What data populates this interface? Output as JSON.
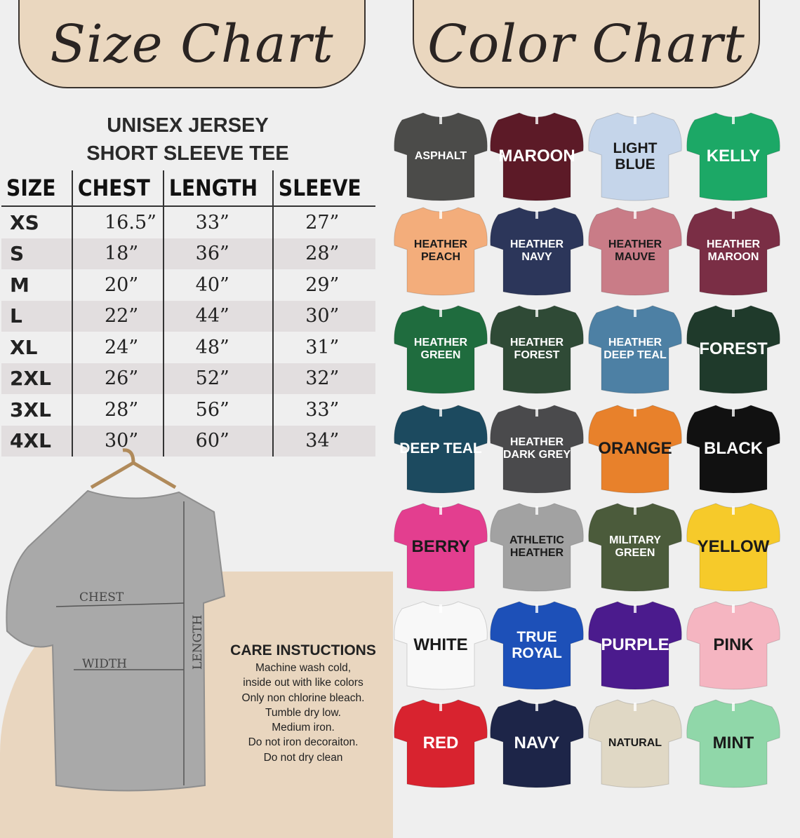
{
  "size_chart_heading": "Size Chart",
  "color_chart_heading": "Color Chart",
  "product_title_line1": "UNISEX JERSEY",
  "product_title_line2": "SHORT SLEEVE TEE",
  "table": {
    "headers": [
      "SIZE",
      "CHEST",
      "LENGTH",
      "SLEEVE"
    ],
    "rows": [
      [
        "XS",
        "16.5”",
        "33”",
        "27”"
      ],
      [
        "S",
        "18”",
        "36”",
        "28”"
      ],
      [
        "M",
        "20”",
        "40”",
        "29”"
      ],
      [
        "L",
        "22”",
        "44”",
        "30”"
      ],
      [
        "XL",
        "24”",
        "48”",
        "31”"
      ],
      [
        "2XL",
        "26”",
        "52”",
        "32”"
      ],
      [
        "3XL",
        "28”",
        "56”",
        "33”"
      ],
      [
        "4XL",
        "30”",
        "60”",
        "34”"
      ]
    ]
  },
  "diagram_labels": {
    "chest": "CHEST",
    "width": "WIDTH",
    "length": "LENGTH"
  },
  "care": {
    "title": "CARE INSTUCTIONS",
    "lines": [
      "Machine wash cold,",
      "inside out with like colors",
      "Only non chlorine bleach.",
      "Tumble dry low.",
      "Medium iron.",
      "Do not iron decoraiton.",
      "Do not dry clean"
    ]
  },
  "colors": [
    {
      "name": "ASPHALT",
      "hex": "#4b4b49",
      "text": "#ffffff"
    },
    {
      "name": "MAROON",
      "hex": "#5c1a27",
      "text": "#ffffff"
    },
    {
      "name": "LIGHT BLUE",
      "hex": "#c5d5ea",
      "text": "#1a1a1a"
    },
    {
      "name": "KELLY",
      "hex": "#1ca866",
      "text": "#ffffff"
    },
    {
      "name": "HEATHER PEACH",
      "hex": "#f3ad7b",
      "text": "#1a1a1a"
    },
    {
      "name": "HEATHER NAVY",
      "hex": "#2c365a",
      "text": "#ffffff"
    },
    {
      "name": "HEATHER MAUVE",
      "hex": "#c97c87",
      "text": "#1a1a1a"
    },
    {
      "name": "HEATHER MAROON",
      "hex": "#7a2e45",
      "text": "#ffffff"
    },
    {
      "name": "HEATHER GREEN",
      "hex": "#1f6c3e",
      "text": "#ffffff"
    },
    {
      "name": "HEATHER FOREST",
      "hex": "#2f4a36",
      "text": "#ffffff"
    },
    {
      "name": "HEATHER DEEP TEAL",
      "hex": "#4d80a4",
      "text": "#ffffff"
    },
    {
      "name": "FOREST",
      "hex": "#1f3a2b",
      "text": "#ffffff"
    },
    {
      "name": "DEEP TEAL",
      "hex": "#1c4a5f",
      "text": "#ffffff"
    },
    {
      "name": "HEATHER DARK GREY",
      "hex": "#4a4a4c",
      "text": "#ffffff"
    },
    {
      "name": "ORANGE",
      "hex": "#e8812b",
      "text": "#1a1a1a"
    },
    {
      "name": "BLACK",
      "hex": "#111111",
      "text": "#ffffff"
    },
    {
      "name": "BERRY",
      "hex": "#e33e8f",
      "text": "#1a1a1a"
    },
    {
      "name": "ATHLETIC HEATHER",
      "hex": "#a2a2a2",
      "text": "#1a1a1a"
    },
    {
      "name": "MILITARY GREEN",
      "hex": "#4b5b3b",
      "text": "#ffffff"
    },
    {
      "name": "YELLOW",
      "hex": "#f6ca2a",
      "text": "#1a1a1a"
    },
    {
      "name": "WHITE",
      "hex": "#f8f8f8",
      "text": "#1a1a1a"
    },
    {
      "name": "TRUE ROYAL",
      "hex": "#1d50b8",
      "text": "#ffffff"
    },
    {
      "name": "PURPLE",
      "hex": "#4b1b8d",
      "text": "#ffffff"
    },
    {
      "name": "PINK",
      "hex": "#f5b5c1",
      "text": "#1a1a1a"
    },
    {
      "name": "RED",
      "hex": "#d8232f",
      "text": "#ffffff"
    },
    {
      "name": "NAVY",
      "hex": "#1d2548",
      "text": "#ffffff"
    },
    {
      "name": "NATURAL",
      "hex": "#e0d8c5",
      "text": "#1a1a1a"
    },
    {
      "name": "MINT",
      "hex": "#90d7a9",
      "text": "#1a1a1a"
    }
  ]
}
